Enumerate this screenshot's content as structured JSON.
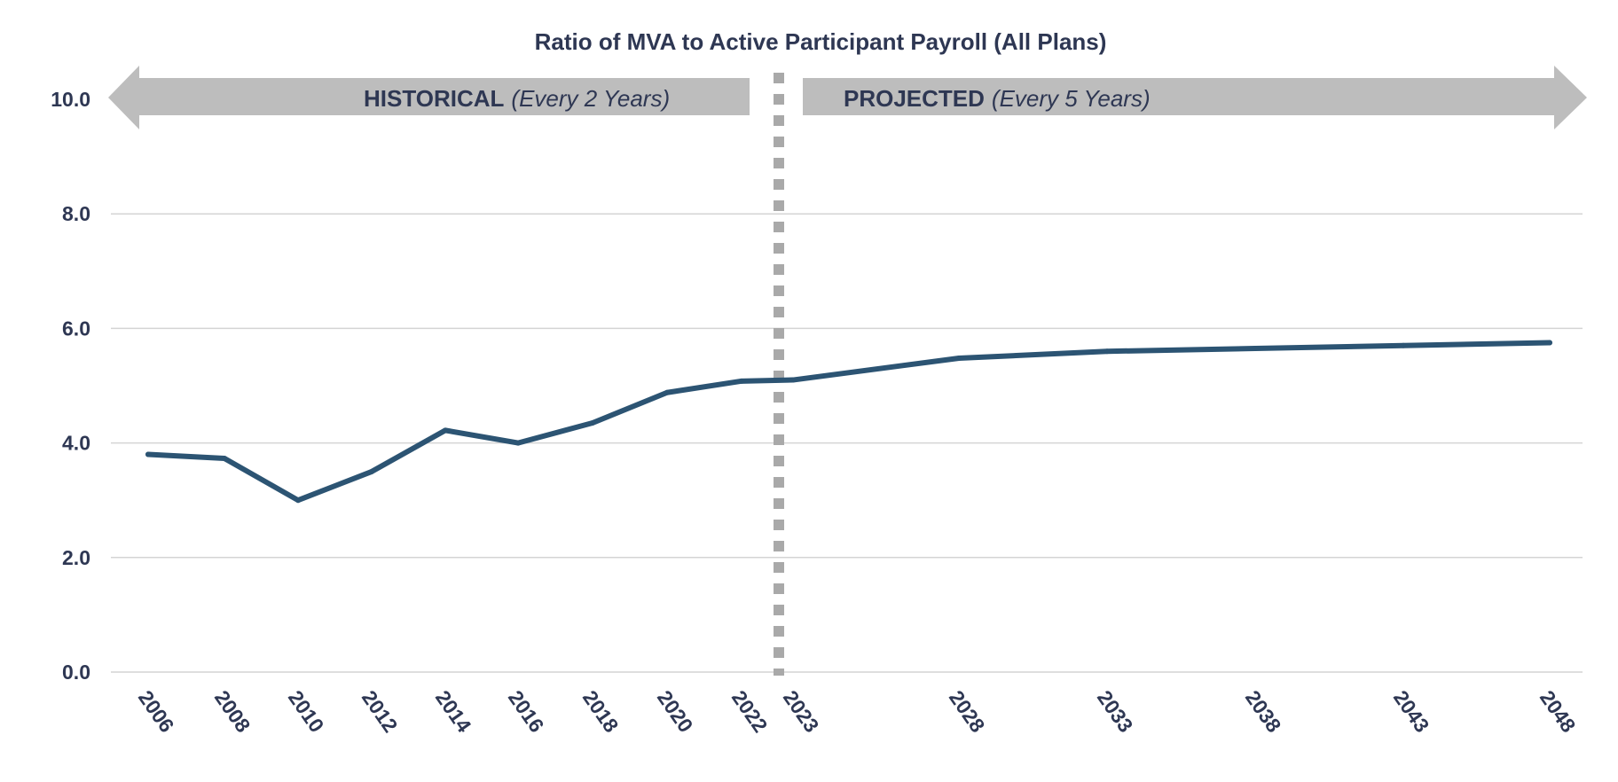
{
  "colors": {
    "line": "#2c5473",
    "grid": "#d4d4d4",
    "band": "#bdbdbd",
    "divider": "#a9a9a9",
    "text": "#2e3753"
  },
  "bands": {
    "historical": {
      "label": "HISTORICAL",
      "sublabel": "(Every 2 Years)"
    },
    "projected": {
      "label": "PROJECTED",
      "sublabel": "(Every 5 Years)"
    }
  },
  "chart_data": {
    "type": "line",
    "title": "Ratio of MVA to Active Participant Payroll (All Plans)",
    "xlabel": "",
    "ylabel": "",
    "categories": [
      "2006",
      "2008",
      "2010",
      "2012",
      "2014",
      "2016",
      "2018",
      "2020",
      "2022",
      "2023",
      "2028",
      "2033",
      "2038",
      "2043",
      "2048"
    ],
    "series": [
      {
        "values": [
          3.8,
          3.73,
          3.0,
          3.5,
          4.22,
          4.0,
          4.35,
          4.88,
          5.08,
          5.1,
          5.48,
          5.6,
          5.65,
          5.7,
          5.75
        ]
      }
    ],
    "ylim": [
      0,
      10
    ],
    "yticks": [
      "0.0",
      "2.0",
      "4.0",
      "6.0",
      "8.0",
      "10.0"
    ],
    "grid": true,
    "legend": "none",
    "divider_between": [
      "2022",
      "2023"
    ]
  }
}
